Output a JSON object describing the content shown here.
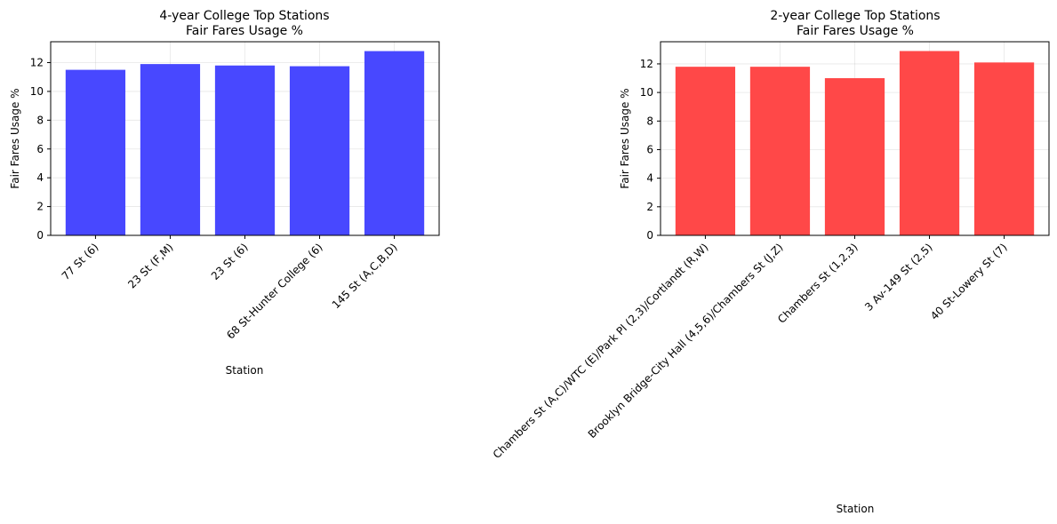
{
  "chart_data": [
    {
      "type": "bar",
      "title": "4-year College Top Stations",
      "subtitle": "Fair Fares Usage %",
      "xlabel": "Station",
      "ylabel": "Fair Fares Usage %",
      "categories": [
        "77 St (6)",
        "23 St (F,M)",
        "23 St (6)",
        "68 St-Hunter College (6)",
        "145 St (A,C,B,D)"
      ],
      "values": [
        11.5,
        11.9,
        11.8,
        11.75,
        12.8
      ],
      "ylim": [
        0,
        13.45
      ],
      "yticks": [
        0,
        2,
        4,
        6,
        8,
        10,
        12
      ],
      "grid": true,
      "color": "#4848ff"
    },
    {
      "type": "bar",
      "title": "2-year College Top Stations",
      "subtitle": "Fair Fares Usage %",
      "xlabel": "Station",
      "ylabel": "Fair Fares Usage %",
      "categories": [
        "Chambers St (A,C)/WTC (E)/Park Pl (2,3)/Cortlandt (R,W)",
        "Brooklyn Bridge-City Hall (4,5,6)/Chambers St (J,Z)",
        "Chambers St (1,2,3)",
        "3 Av-149 St (2,5)",
        "40 St-Lowery St (7)"
      ],
      "values": [
        11.8,
        11.8,
        11.0,
        12.9,
        12.1
      ],
      "ylim": [
        0,
        13.55
      ],
      "yticks": [
        0,
        2,
        4,
        6,
        8,
        10,
        12
      ],
      "grid": true,
      "color": "#ff4848"
    }
  ]
}
